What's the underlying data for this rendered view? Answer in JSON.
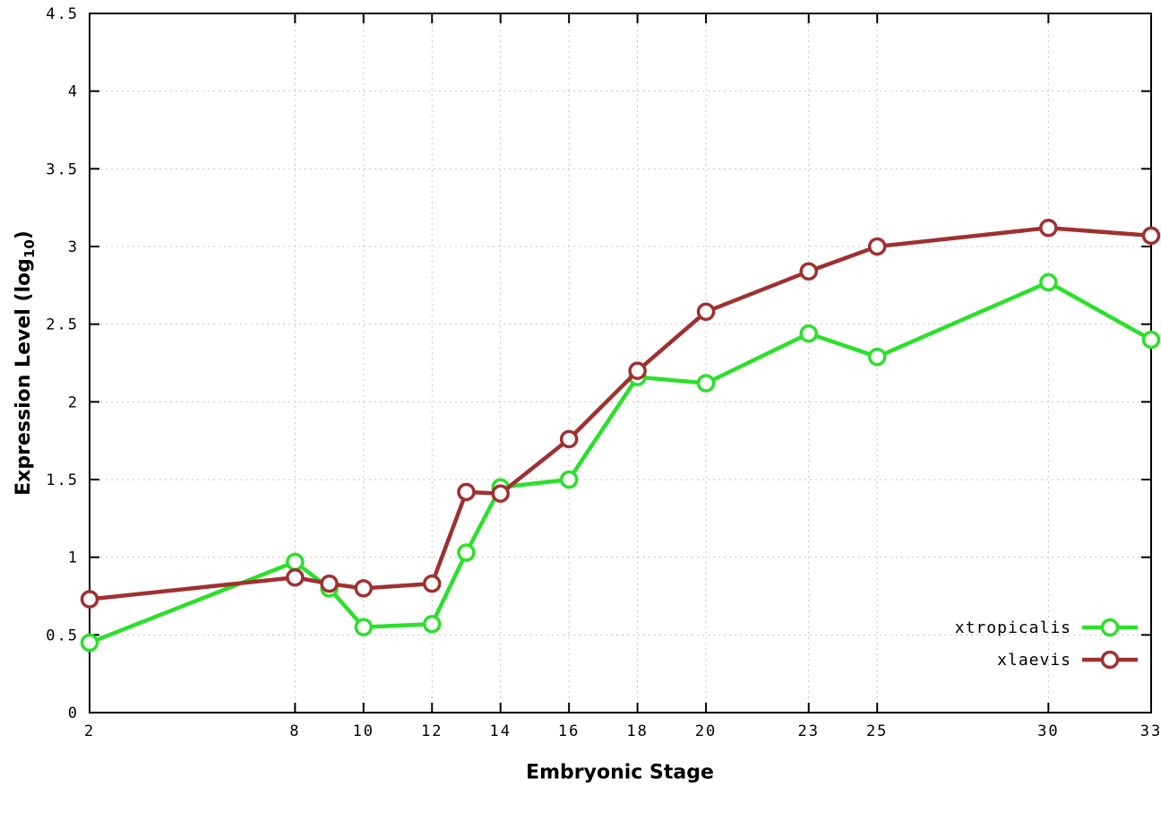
{
  "chart_data": {
    "type": "line",
    "title": "",
    "xlabel": "Embryonic Stage",
    "ylabel": "Expression Level (log10)",
    "xlim": [
      2,
      33
    ],
    "ylim": [
      0,
      4.5
    ],
    "grid": true,
    "legend_position": "bottom-right",
    "marker": "open-circle",
    "x": [
      2,
      8,
      9,
      10,
      12,
      13,
      14,
      16,
      18,
      20,
      23,
      25,
      30,
      33
    ],
    "xticks": [
      2,
      8,
      10,
      12,
      14,
      16,
      18,
      20,
      23,
      25,
      30,
      33
    ],
    "xtick_labels": [
      "2",
      "8",
      "10",
      "12",
      "14",
      "16",
      "18",
      "20",
      "23",
      "25",
      "30",
      "33"
    ],
    "yticks": [
      0,
      0.5,
      1,
      1.5,
      2,
      2.5,
      3,
      3.5,
      4,
      4.5
    ],
    "ytick_labels": [
      "0",
      "0.5",
      "1",
      "1.5",
      "2",
      "2.5",
      "3",
      "3.5",
      "4",
      "4.5"
    ],
    "series": [
      {
        "name": "xtropicalis",
        "color": "#2ae02a",
        "values": [
          0.45,
          0.97,
          0.8,
          0.55,
          0.57,
          1.03,
          1.45,
          1.5,
          2.16,
          2.12,
          2.44,
          2.29,
          2.77,
          2.4
        ]
      },
      {
        "name": "xlaevis",
        "color": "#a03030",
        "values": [
          0.73,
          0.87,
          0.83,
          0.8,
          0.83,
          1.42,
          1.41,
          1.76,
          2.2,
          2.58,
          2.84,
          3.0,
          3.12,
          3.07
        ]
      }
    ]
  },
  "axes": {
    "xlabel": "Embryonic Stage",
    "ylabel_pre": "Expression Level (log",
    "ylabel_sub": "10",
    "ylabel_post": ")"
  },
  "colors": {
    "grid": "#c4c4c4",
    "axis": "#000000",
    "background": "#ffffff"
  }
}
